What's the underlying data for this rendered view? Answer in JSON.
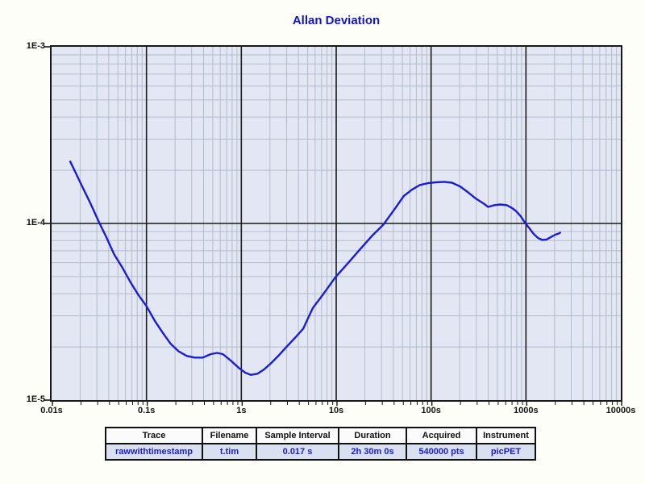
{
  "title": "Allan Deviation",
  "colors": {
    "page_bg": "#fcfef7",
    "title_text": "#1414cc",
    "curve": "#1c1cd6",
    "plot_bg": "#e2e7f3",
    "grid_minor": "#b4bbca",
    "grid_major": "#1a1a1a",
    "table_data_text": "#1c1cd6",
    "table_data_bg": "#d9e1f0",
    "table_header_bg": "#fbfbfb"
  },
  "axes": {
    "x_ticks": [
      "0.01s",
      "0.1s",
      "1s",
      "10s",
      "100s",
      "1000s",
      "10000s"
    ],
    "y_ticks": [
      "1E-3",
      "1E-4",
      "1E-5"
    ]
  },
  "chart_data": {
    "type": "line",
    "title": "Allan Deviation",
    "x_scale": "log",
    "y_scale": "log",
    "xlim": [
      0.01,
      10000
    ],
    "ylim": [
      1e-05,
      0.001
    ],
    "x_tick_labels": [
      "0.01s",
      "0.1s",
      "1s",
      "10s",
      "100s",
      "1000s",
      "10000s"
    ],
    "y_tick_labels": [
      "1E-3",
      "1E-4",
      "1E-5"
    ],
    "grid": "log minor + major decades",
    "legend_position": "none",
    "series": [
      {
        "name": "rawwithtimestamp",
        "color": "#1c1cd6",
        "points": [
          [
            0.0157,
            0.000224
          ],
          [
            0.018,
            0.000193
          ],
          [
            0.021,
            0.000162
          ],
          [
            0.0255,
            0.000131
          ],
          [
            0.031,
            0.000104
          ],
          [
            0.0377,
            8.37e-05
          ],
          [
            0.0458,
            6.65e-05
          ],
          [
            0.0557,
            5.62e-05
          ],
          [
            0.0677,
            4.66e-05
          ],
          [
            0.0822,
            3.94e-05
          ],
          [
            0.1,
            3.4e-05
          ],
          [
            0.122,
            2.82e-05
          ],
          [
            0.148,
            2.41e-05
          ],
          [
            0.18,
            2.08e-05
          ],
          [
            0.218,
            1.89e-05
          ],
          [
            0.265,
            1.78e-05
          ],
          [
            0.323,
            1.74e-05
          ],
          [
            0.392,
            1.74e-05
          ],
          [
            0.476,
            1.82e-05
          ],
          [
            0.557,
            1.85e-05
          ],
          [
            0.638,
            1.82e-05
          ],
          [
            0.776,
            1.67e-05
          ],
          [
            0.943,
            1.52e-05
          ],
          [
            1.1,
            1.43e-05
          ],
          [
            1.26,
            1.39e-05
          ],
          [
            1.48,
            1.41e-05
          ],
          [
            1.73,
            1.49e-05
          ],
          [
            2.06,
            1.62e-05
          ],
          [
            2.5,
            1.8e-05
          ],
          [
            3.04,
            2.02e-05
          ],
          [
            3.7,
            2.26e-05
          ],
          [
            4.5,
            2.54e-05
          ],
          [
            5.05,
            2.91e-05
          ],
          [
            5.68,
            3.33e-05
          ],
          [
            7.31,
            3.98e-05
          ],
          [
            9.81,
            4.96e-05
          ],
          [
            13.2,
            5.93e-05
          ],
          [
            17.6,
            7.08e-05
          ],
          [
            23.6,
            8.46e-05
          ],
          [
            31.6,
            9.89e-05
          ],
          [
            42.4,
            0.000123
          ],
          [
            51.5,
            0.000143
          ],
          [
            62.6,
            0.000155
          ],
          [
            76.0,
            0.000165
          ],
          [
            92.5,
            0.000169
          ],
          [
            112,
            0.000171
          ],
          [
            137,
            0.000172
          ],
          [
            166,
            0.00017
          ],
          [
            202,
            0.000162
          ],
          [
            245,
            0.00015
          ],
          [
            298,
            0.000138
          ],
          [
            363,
            0.000129
          ],
          [
            399,
            0.000124
          ],
          [
            467,
            0.000127
          ],
          [
            535,
            0.000128
          ],
          [
            626,
            0.000127
          ],
          [
            718,
            0.000122
          ],
          [
            791,
            0.000117
          ],
          [
            879,
            0.00011
          ],
          [
            977,
            0.000101
          ],
          [
            1085,
            9.4e-05
          ],
          [
            1204,
            8.73e-05
          ],
          [
            1337,
            8.28e-05
          ],
          [
            1484,
            8.07e-05
          ],
          [
            1648,
            8.11e-05
          ],
          [
            1830,
            8.37e-05
          ],
          [
            2032,
            8.63e-05
          ],
          [
            2256,
            8.81e-05
          ],
          [
            2290,
            8.87e-05
          ]
        ]
      }
    ]
  },
  "table": {
    "headers": [
      "Trace",
      "Filename",
      "Sample Interval",
      "Duration",
      "Acquired",
      "Instrument"
    ],
    "rows": [
      [
        "rawwithtimestamp",
        "t.tim",
        "0.017 s",
        "2h 30m 0s",
        "540000 pts",
        "picPET"
      ]
    ]
  }
}
